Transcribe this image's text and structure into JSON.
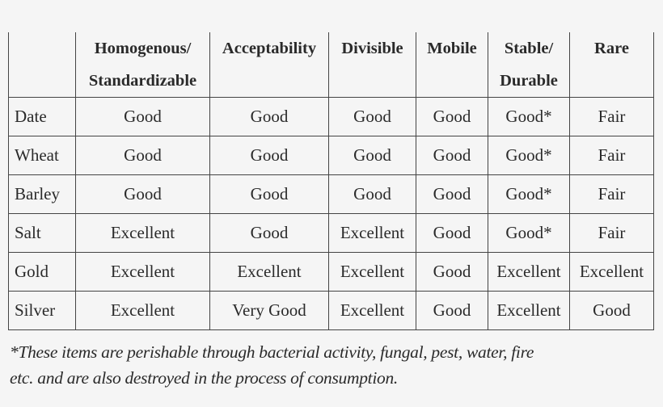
{
  "table": {
    "headers": [
      "",
      "Homogenous/ Standardizable",
      "Acceptability",
      "Divisible",
      "Mobile",
      "Stable/ Durable",
      "Rare"
    ],
    "header_lines": [
      [
        "",
        ""
      ],
      [
        "Homogenous/",
        "Standardizable"
      ],
      [
        "Acceptability",
        ""
      ],
      [
        "Divisible",
        ""
      ],
      [
        "Mobile",
        ""
      ],
      [
        "Stable/",
        "Durable"
      ],
      [
        "Rare",
        ""
      ]
    ],
    "rows": [
      [
        "Date",
        "Good",
        "Good",
        "Good",
        "Good",
        "Good*",
        "Fair"
      ],
      [
        "Wheat",
        "Good",
        "Good",
        "Good",
        "Good",
        "Good*",
        "Fair"
      ],
      [
        "Barley",
        "Good",
        "Good",
        "Good",
        "Good",
        "Good*",
        "Fair"
      ],
      [
        "Salt",
        "Excellent",
        "Good",
        "Excellent",
        "Good",
        "Good*",
        "Fair"
      ],
      [
        "Gold",
        "Excellent",
        "Excellent",
        "Excellent",
        "Good",
        "Excellent",
        "Excellent"
      ],
      [
        "Silver",
        "Excellent",
        "Very Good",
        "Excellent",
        "Good",
        "Excellent",
        "Good"
      ]
    ]
  },
  "footnote": {
    "line1": "*These items are perishable through bacterial activity, fungal, pest, water, fire",
    "line2": "etc. and are also destroyed in the process of consumption."
  }
}
